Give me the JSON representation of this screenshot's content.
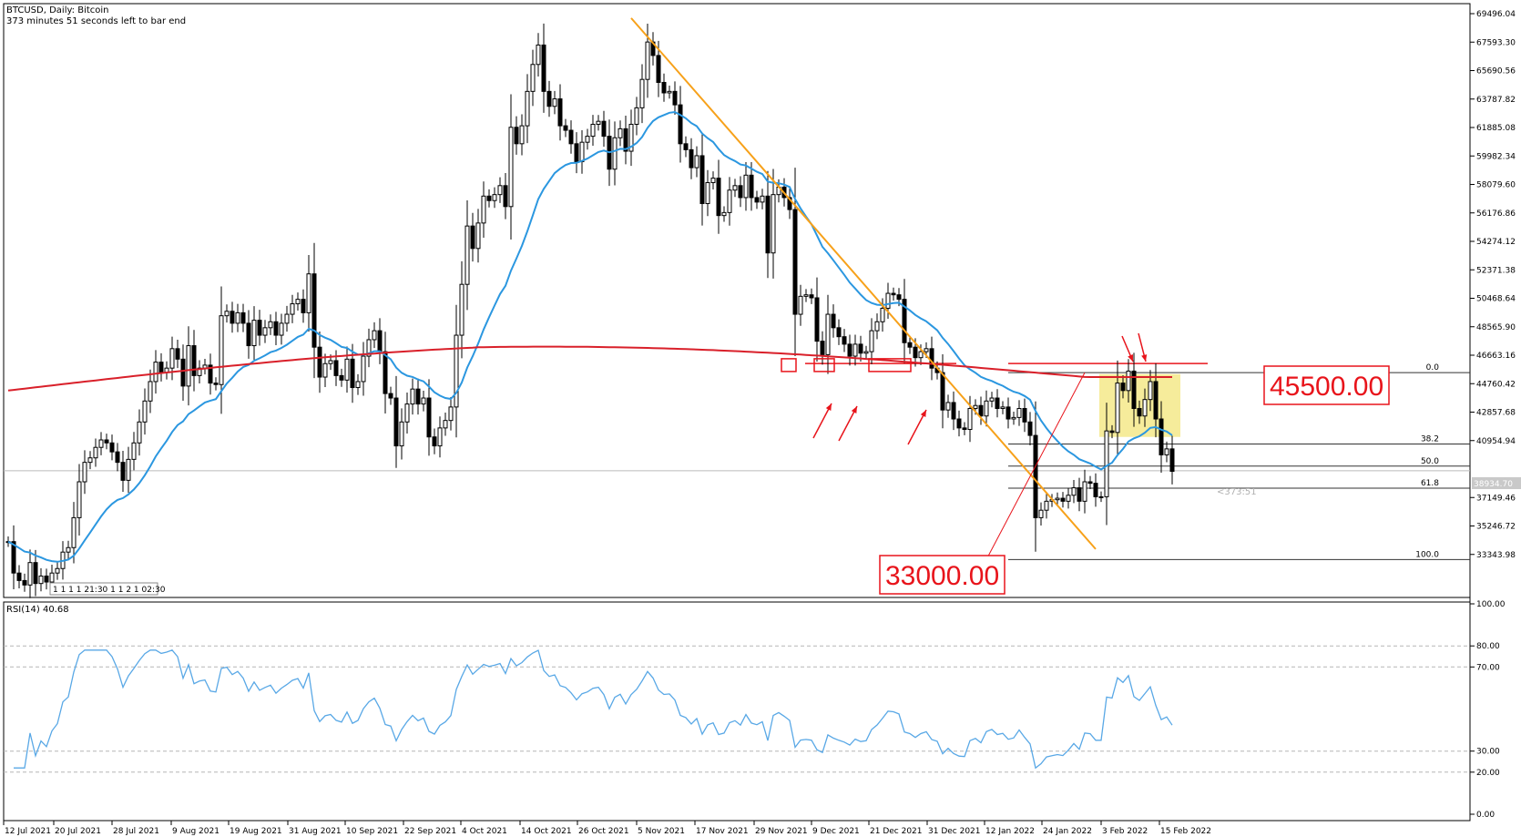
{
  "header": {
    "title": "BTCUSD, Daily:  Bitcoin",
    "subtitle": "373 minutes 51 seconds left to bar end"
  },
  "rsi": {
    "label": "RSI(14) 40.68"
  },
  "annotations": {
    "resistance_label": "45500.00",
    "support_label": "33000.00",
    "timer_label": "<373:51",
    "current_price": "38934.70",
    "collapsed_tabs": "1 1 1 1 21:30 1 1 2 1 02:30"
  },
  "colors": {
    "ema_fast": "#2b97e0",
    "ema_slow": "#d9202a",
    "trendline": "#f7a11a",
    "annotation": "#e8141b",
    "highlight_box": "#f4e98a",
    "rsi_line": "#59a8e6"
  },
  "chart_data": [
    {
      "type": "candlestick",
      "title": "BTCUSD, Daily:  Bitcoin",
      "x_tick_labels": [
        "12 Jul 2021",
        "20 Jul 2021",
        "28 Jul 2021",
        "9 Aug 2021",
        "19 Aug 2021",
        "31 Aug 2021",
        "10 Sep 2021",
        "22 Sep 2021",
        "4 Oct 2021",
        "14 Oct 2021",
        "26 Oct 2021",
        "5 Nov 2021",
        "17 Nov 2021",
        "29 Nov 2021",
        "9 Dec 2021",
        "21 Dec 2021",
        "31 Dec 2021",
        "12 Jan 2022",
        "24 Jan 2022",
        "3 Feb 2022",
        "15 Feb 2022"
      ],
      "y_tick_labels": [
        "69496.04",
        "67593.30",
        "65690.56",
        "63787.82",
        "61885.08",
        "59982.34",
        "58079.60",
        "56176.86",
        "54274.12",
        "52371.38",
        "50468.64",
        "48565.90",
        "46663.16",
        "44760.42",
        "42857.68",
        "40954.94",
        "37149.46",
        "35246.72",
        "33343.98"
      ],
      "ylim": [
        32400,
        70000
      ],
      "current_price": 38934.7,
      "fibonacci_levels": [
        {
          "label": "0.0",
          "price": 45500
        },
        {
          "label": "38.2",
          "price": 40725
        },
        {
          "label": "50.0",
          "price": 39250
        },
        {
          "label": "61.8",
          "price": 37775
        },
        {
          "label": "100.0",
          "price": 33000
        }
      ],
      "resistance": 45500,
      "support": 33000,
      "close": [
        34200,
        32100,
        31600,
        31300,
        32800,
        31400,
        31900,
        31500,
        32100,
        32400,
        33500,
        33800,
        35800,
        38200,
        39500,
        39800,
        40500,
        41000,
        40800,
        40200,
        39500,
        38300,
        39700,
        40800,
        42200,
        43600,
        44900,
        46200,
        45500,
        45800,
        47100,
        46400,
        44600,
        47300,
        45300,
        45800,
        46000,
        44800,
        44700,
        49300,
        49600,
        48800,
        49500,
        48800,
        47300,
        49000,
        48000,
        48500,
        48900,
        48000,
        48800,
        49400,
        50100,
        50400,
        49500,
        52100,
        47200,
        45200,
        46100,
        46300,
        45300,
        45000,
        46400,
        44500,
        44900,
        46600,
        47700,
        48300,
        46900,
        44100,
        43800,
        40600,
        42200,
        43400,
        44400,
        43400,
        43800,
        41200,
        40600,
        41800,
        42300,
        43200,
        48000,
        51400,
        55300,
        53800,
        55500,
        57300,
        57000,
        57400,
        58000,
        56600,
        61900,
        60800,
        62000,
        64300,
        66100,
        67400,
        64300,
        63300,
        63800,
        62000,
        61700,
        60800,
        59600,
        60900,
        61300,
        62100,
        62300,
        61300,
        59100,
        61200,
        61800,
        60300,
        62100,
        63200,
        65100,
        67600,
        66700,
        64900,
        64200,
        64300,
        63400,
        60800,
        60400,
        59200,
        60000,
        56800,
        58200,
        58500,
        56000,
        56200,
        57700,
        58000,
        57200,
        58700,
        57200,
        56900,
        57300,
        53500,
        57400,
        57900,
        57200,
        56400,
        49400,
        50600,
        50700,
        50500,
        47600,
        46700,
        49400,
        48500,
        47900,
        47400,
        46600,
        47400,
        46800,
        46900,
        48300,
        48900,
        49800,
        50800,
        50700,
        50400,
        47500,
        47200,
        46500,
        46900,
        47100,
        45800,
        45500,
        43000,
        43500,
        42400,
        41800,
        41700,
        43100,
        43300,
        42600,
        43600,
        43800,
        43100,
        43200,
        42400,
        42500,
        43100,
        42200,
        41300,
        35800,
        36300,
        36900,
        37000,
        37100,
        36900,
        37300,
        37800,
        36900,
        38200,
        38100,
        37200,
        37200,
        41600,
        41500,
        44800,
        44300,
        45600,
        43100,
        42600,
        43700,
        44900,
        42400,
        40000,
        40400,
        38900
      ],
      "ema_fast": "blue moving average (approx. 20-period)",
      "ema_slow": "red moving average (approx. 200-period)"
    },
    {
      "type": "line",
      "title": "RSI(14) 40.68",
      "ylim": [
        0,
        100
      ],
      "y_tick_labels": [
        "100.00",
        "80.00",
        "70.00",
        "30.00",
        "20.00",
        "0.00"
      ],
      "levels": [
        80,
        70,
        30,
        20
      ],
      "values": [
        40.7
      ]
    }
  ]
}
